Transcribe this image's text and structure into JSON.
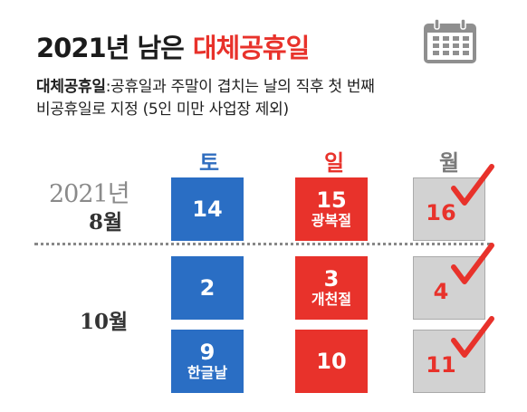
{
  "title": {
    "black": "2021년 남은",
    "red": "대체공휴일"
  },
  "subtitle": {
    "term": "대체공휴일",
    "line1_rest": ":공휴일과 주말이 겹치는 날의 직후 첫 번째",
    "line2": "비공휴일로 지정 (5인 미만 사업장 제외)"
  },
  "headers": {
    "saturday": "토",
    "sunday": "일",
    "monday": "월"
  },
  "year_label": "2021년",
  "months": {
    "august": "8월",
    "october": "10월"
  },
  "rows": [
    {
      "sat": {
        "num": "14",
        "sub": ""
      },
      "sun": {
        "num": "15",
        "sub": "광복절"
      },
      "mon": {
        "num": "16"
      }
    },
    {
      "sat": {
        "num": "2",
        "sub": ""
      },
      "sun": {
        "num": "3",
        "sub": "개천절"
      },
      "mon": {
        "num": "4"
      }
    },
    {
      "sat": {
        "num": "9",
        "sub": "한글날"
      },
      "sun": {
        "num": "10",
        "sub": ""
      },
      "mon": {
        "num": "11"
      }
    }
  ],
  "icons": {
    "calendar": "calendar-icon",
    "check": "checkmark-icon"
  },
  "colors": {
    "blue": "#2a6ec4",
    "red": "#e8322b",
    "gray": "#d2d2d2"
  }
}
